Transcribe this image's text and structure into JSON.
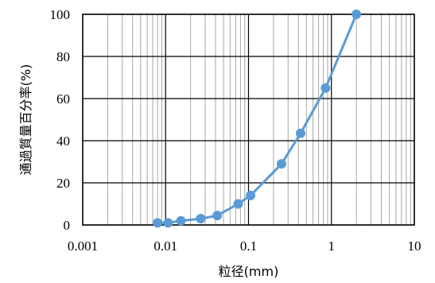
{
  "chart_data": {
    "type": "line",
    "xscale": "log",
    "xlim": [
      0.001,
      10
    ],
    "ylim": [
      0,
      100
    ],
    "xlabel": "粒径(mm)",
    "ylabel": "通過質量百分率(%)",
    "x_tick_labels": [
      "0.001",
      "0.01",
      "0.1",
      "1",
      "10"
    ],
    "y_tick_labels": [
      "0",
      "20",
      "40",
      "60",
      "80",
      "100"
    ],
    "x_ticks": [
      0.001,
      0.01,
      0.1,
      1,
      10
    ],
    "y_ticks": [
      0,
      20,
      40,
      60,
      80,
      100
    ],
    "grid": true,
    "series": [
      {
        "color": "#5B9BD5",
        "x": [
          0.008,
          0.0107,
          0.0153,
          0.0265,
          0.042,
          0.075,
          0.106,
          0.25,
          0.425,
          0.85,
          2.0
        ],
        "y": [
          1,
          1,
          2,
          3,
          4.5,
          10,
          14,
          29,
          43.5,
          65,
          100
        ]
      }
    ]
  }
}
